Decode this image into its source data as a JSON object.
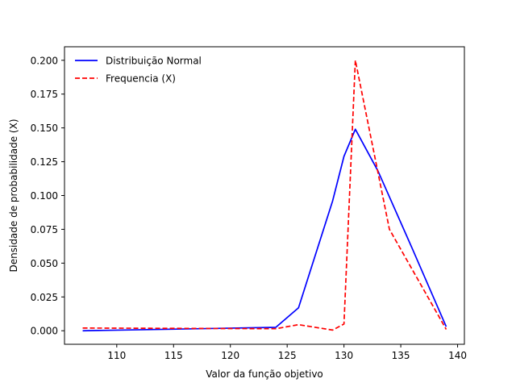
{
  "chart_data": {
    "type": "line",
    "title": "",
    "xlabel": "Valor da função objetivo",
    "ylabel": "Densidade de probabilidade (X)",
    "xlim": [
      105.4,
      140.6
    ],
    "ylim": [
      -0.01,
      0.21
    ],
    "xticks": [
      110,
      115,
      120,
      125,
      130,
      135,
      140
    ],
    "xtick_labels": [
      "110",
      "115",
      "120",
      "125",
      "130",
      "135",
      "140"
    ],
    "yticks": [
      0.0,
      0.025,
      0.05,
      0.075,
      0.1,
      0.125,
      0.15,
      0.175,
      0.2
    ],
    "ytick_labels": [
      "0.000",
      "0.025",
      "0.050",
      "0.075",
      "0.100",
      "0.125",
      "0.150",
      "0.175",
      "0.200"
    ],
    "grid": false,
    "legend_position": "top-left",
    "series": [
      {
        "name": "Distribuição Normal",
        "color": "#0000ff",
        "style": "solid",
        "x": [
          107,
          124,
          126,
          129,
          130,
          131,
          133,
          136,
          139
        ],
        "y": [
          0.0,
          0.0025,
          0.017,
          0.096,
          0.129,
          0.149,
          0.118,
          0.061,
          0.003
        ]
      },
      {
        "name": "Frequencia (X)",
        "color": "#ff0000",
        "style": "dashed",
        "x": [
          107,
          124,
          126,
          129,
          130,
          131,
          134,
          139
        ],
        "y": [
          0.002,
          0.0015,
          0.0045,
          0.0005,
          0.005,
          0.2,
          0.075,
          0.001
        ]
      }
    ]
  }
}
